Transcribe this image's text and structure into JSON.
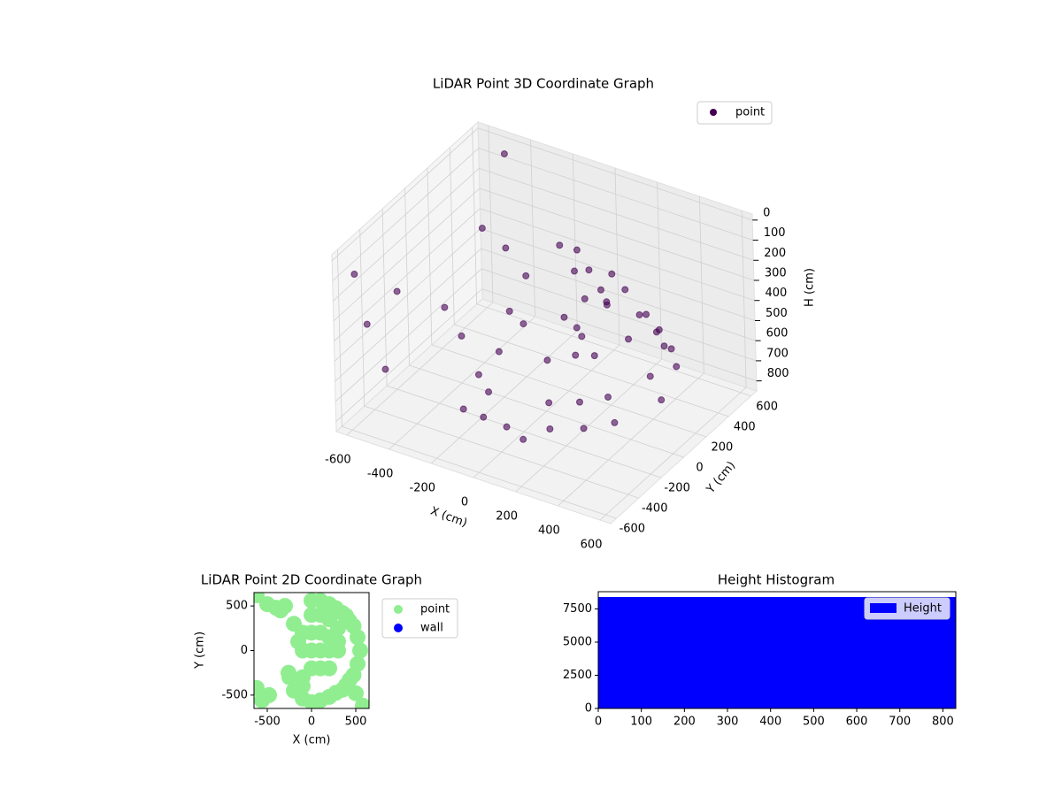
{
  "chart_data": [
    {
      "type": "scatter3d",
      "title": "LiDAR Point 3D Coordinate Graph",
      "xlabel": "X (cm)",
      "ylabel": "Y (cm)",
      "zlabel": "H (cm)",
      "xlim": [
        -650,
        650
      ],
      "ylim": [
        -650,
        650
      ],
      "zlim": [
        850,
        -30
      ],
      "xticks": [
        -600,
        -400,
        -200,
        0,
        200,
        400,
        600
      ],
      "yticks": [
        -600,
        -400,
        -200,
        0,
        200,
        400,
        600
      ],
      "zticks": [
        0,
        100,
        200,
        300,
        400,
        500,
        600,
        700,
        800
      ],
      "grid": true,
      "legend": "upper right",
      "series": [
        {
          "name": "point",
          "color": "#440154",
          "x": [
            0,
            275,
            390,
            475,
            550,
            475,
            390,
            275,
            0,
            -100,
            -100,
            0,
            250,
            354,
            433,
            500,
            433,
            354,
            250,
            0,
            0,
            200,
            346,
            400,
            346,
            200,
            0,
            0,
            212,
            300,
            212,
            0,
            0,
            150,
            0,
            100,
            200,
            -100,
            150,
            -200,
            -150,
            -100,
            0,
            50,
            -600,
            -600,
            -600,
            -500,
            -700,
            -450,
            -450
          ],
          "y": [
            550,
            475,
            390,
            275,
            0,
            -275,
            -390,
            -475,
            -550,
            -540,
            540,
            500,
            433,
            354,
            250,
            0,
            -250,
            -354,
            -433,
            -500,
            400,
            346,
            200,
            0,
            -200,
            -346,
            -400,
            300,
            212,
            0,
            -212,
            -300,
            150,
            0,
            -150,
            100,
            -100,
            0,
            50,
            -500,
            -450,
            -400,
            -350,
            -300,
            -550,
            -450,
            -300,
            600,
            0,
            300,
            500
          ],
          "z": [
            600,
            600,
            600,
            600,
            600,
            600,
            600,
            600,
            600,
            600,
            600,
            500,
            500,
            500,
            500,
            500,
            500,
            500,
            500,
            500,
            350,
            350,
            350,
            350,
            350,
            350,
            350,
            200,
            200,
            200,
            200,
            200,
            100,
            100,
            100,
            450,
            450,
            450,
            450,
            150,
            300,
            500,
            750,
            820,
            100,
            400,
            700,
            50,
            500,
            250,
            450
          ]
        }
      ]
    },
    {
      "type": "scatter",
      "title": "LiDAR Point 2D Coordinate Graph",
      "xlabel": "X (cm)",
      "ylabel": "Y (cm)",
      "xlim": [
        -650,
        650
      ],
      "ylim": [
        -650,
        650
      ],
      "xticks": [
        -500,
        0,
        500
      ],
      "yticks": [
        -500,
        0,
        500
      ],
      "legend": "outside right",
      "series": [
        {
          "name": "point",
          "color": "#90ee90",
          "x": [
            0,
            100,
            200,
            275,
            350,
            390,
            430,
            475,
            520,
            550,
            520,
            475,
            430,
            390,
            350,
            275,
            200,
            100,
            0,
            -100,
            -200,
            -250,
            -300,
            -350,
            -400,
            -500,
            -200,
            -100,
            0,
            100,
            200,
            300,
            0,
            100,
            200,
            300,
            0,
            100,
            200,
            300,
            0,
            100,
            200,
            -100,
            -100,
            -100,
            -620,
            -560,
            -480,
            500,
            580,
            -620,
            -260,
            -150
          ],
          "y": [
            560,
            560,
            520,
            475,
            420,
            390,
            330,
            275,
            150,
            0,
            -150,
            -275,
            -330,
            -390,
            -440,
            -475,
            -520,
            -560,
            -580,
            -540,
            -450,
            -300,
            500,
            450,
            480,
            520,
            300,
            200,
            400,
            400,
            350,
            250,
            200,
            200,
            150,
            100,
            0,
            0,
            0,
            0,
            -200,
            -200,
            -200,
            -300,
            -400,
            0,
            -420,
            -560,
            -500,
            -480,
            -620,
            620,
            -250,
            100
          ]
        },
        {
          "name": "wall",
          "color": "#0000ff",
          "x": [],
          "y": []
        }
      ]
    },
    {
      "type": "histogram",
      "title": "Height Histogram",
      "xlim": [
        0,
        830
      ],
      "ylim": [
        0,
        8800
      ],
      "xticks": [
        0,
        100,
        200,
        300,
        400,
        500,
        600,
        700,
        800
      ],
      "yticks": [
        0,
        2500,
        5000,
        7500
      ],
      "bins": [
        0,
        830
      ],
      "legend": "upper right",
      "series": [
        {
          "name": "Height",
          "color": "#0000ff",
          "values": [
            8400
          ]
        }
      ]
    }
  ]
}
